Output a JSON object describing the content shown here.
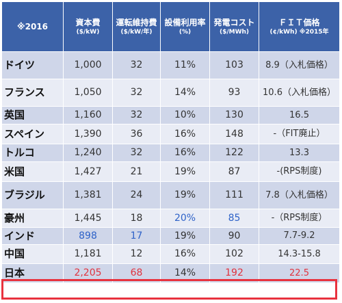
{
  "table": {
    "headers": [
      {
        "main": "※2016",
        "sub": ""
      },
      {
        "main": "資本費",
        "sub": "($/kW)"
      },
      {
        "main": "運転維持費",
        "sub": "($/kW/年)"
      },
      {
        "main": "設備利用率",
        "sub": "(%)"
      },
      {
        "main": "発電コスト",
        "sub": "($/MWh)"
      },
      {
        "main": "ＦＩＴ価格",
        "sub": "(¢/kWh) ※2015年"
      }
    ],
    "rows": [
      {
        "country": "ドイツ",
        "capex": "1,000",
        "om": "32",
        "cf": "11%",
        "lcoe": "103",
        "fit": "8.9（入札価格）"
      },
      {
        "country": "フランス",
        "capex": "1,050",
        "om": "32",
        "cf": "14%",
        "lcoe": "93",
        "fit": "10.6（入札価格）"
      },
      {
        "country": "英国",
        "capex": "1,160",
        "om": "32",
        "cf": "10%",
        "lcoe": "130",
        "fit": "16.5"
      },
      {
        "country": "スペイン",
        "capex": "1,390",
        "om": "36",
        "cf": "16%",
        "lcoe": "148",
        "fit": "-（FIT廃止）"
      },
      {
        "country": "トルコ",
        "capex": "1,240",
        "om": "32",
        "cf": "16%",
        "lcoe": "122",
        "fit": "13.3"
      },
      {
        "country": "米国",
        "capex": "1,427",
        "om": "21",
        "cf": "19%",
        "lcoe": "87",
        "fit": "-(RPS制度)"
      },
      {
        "country": "ブラジル",
        "capex": "1,381",
        "om": "24",
        "cf": "19%",
        "lcoe": "111",
        "fit": "7.8（入札価格）"
      },
      {
        "country": "豪州",
        "capex": "1,445",
        "om": "18",
        "cf": "20%",
        "lcoe": "85",
        "fit": "-（RPS制度）"
      },
      {
        "country": "インド",
        "capex": "898",
        "om": "17",
        "cf": "19%",
        "lcoe": "90",
        "fit": "7.7-9.2"
      },
      {
        "country": "中国",
        "capex": "1,181",
        "om": "12",
        "cf": "16%",
        "lcoe": "102",
        "fit": "14.3-15.8"
      },
      {
        "country": "日本",
        "capex": "2,205",
        "om": "68",
        "cf": "14%",
        "lcoe": "192",
        "fit": "22.5"
      }
    ]
  },
  "colors": {
    "header_bg": "#3c62a8",
    "row_odd": "#cfd6e9",
    "row_even": "#e9ecf5",
    "blue_text": "#2e62c8",
    "red_text": "#e0333f",
    "highlight_border": "#e8323e"
  }
}
